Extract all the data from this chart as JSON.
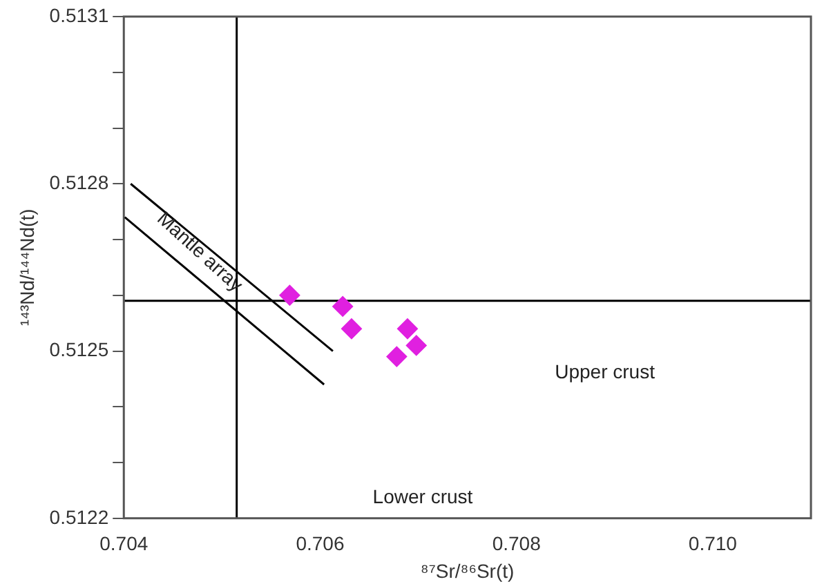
{
  "chart_data": {
    "type": "scatter",
    "xlabel": "⁸⁷Sr/⁸⁶Sr(t)",
    "ylabel": "¹⁴³Nd/¹⁴⁴Nd(t)",
    "xlim": [
      0.704,
      0.711
    ],
    "ylim": [
      0.5122,
      0.5131
    ],
    "xticks": [
      0.704,
      0.706,
      0.708,
      {
        "value": 0.71,
        "label": "0.710"
      }
    ],
    "yticks": [
      0.5122,
      {
        "value": 0.5123,
        "label": null
      },
      {
        "value": 0.5124,
        "label": null
      },
      0.5125,
      {
        "value": 0.5126,
        "label": null
      },
      {
        "value": 0.5127,
        "label": null
      },
      0.5128,
      {
        "value": 0.5129,
        "label": null
      },
      {
        "value": 0.513,
        "label": null
      },
      0.5131
    ],
    "grid": false,
    "legend": false,
    "marker": "diamond",
    "series": [
      {
        "color": "#e020e0",
        "x": [
          0.70569,
          0.70623,
          0.70632,
          0.70689,
          0.70698,
          0.70678
        ],
        "values": [
          0.5126,
          0.51258,
          0.51254,
          0.51254,
          0.51251,
          0.51249
        ]
      },
      {
        "type": "line",
        "color": "#000000",
        "marker": "none",
        "x": [
          0.70407,
          0.70613
        ],
        "values": [
          0.5128,
          0.5125
        ]
      },
      {
        "type": "line",
        "color": "#000000",
        "marker": "none",
        "x": [
          0.70401,
          0.70604
        ],
        "values": [
          0.51274,
          0.51244
        ]
      }
    ],
    "ref_lines": [
      {
        "axis": "x",
        "value": 0.70515,
        "color": "#000000"
      },
      {
        "axis": "y",
        "value": 0.51259,
        "color": "#000000"
      }
    ],
    "annotations": [
      "Mantle array",
      "Upper crust",
      "Lower crust"
    ]
  }
}
